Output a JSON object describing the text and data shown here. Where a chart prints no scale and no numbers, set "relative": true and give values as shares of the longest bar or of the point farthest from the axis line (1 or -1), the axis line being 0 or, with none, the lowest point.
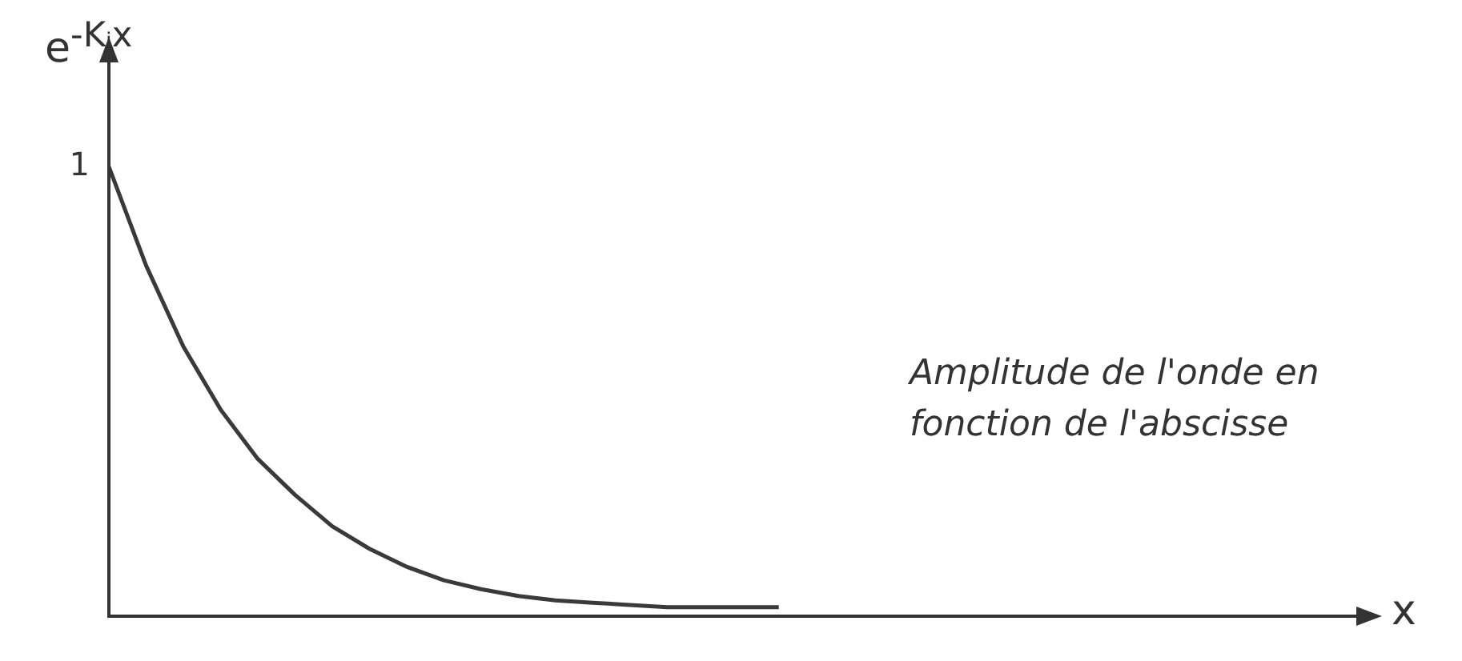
{
  "chart_data": {
    "type": "line",
    "relative": true,
    "ylabel": "e$^{-Kᵢx}$",
    "xlabel": "x",
    "categories": [
      null,
      null,
      null,
      null,
      null,
      null,
      null,
      null,
      null,
      null,
      null,
      null,
      null,
      null,
      null,
      null,
      null,
      null,
      null,
      null,
      null,
      null,
      null,
      null,
      null,
      null,
      null,
      null,
      null,
      null,
      null,
      null,
      null,
      null
    ],
    "series": [
      {
        "color": "#3a3a3a",
        "values": [
          1,
          0.78,
          0.6,
          0.46,
          0.35,
          0.27,
          0.2,
          0.15,
          0.11,
          0.08,
          0.06,
          0.045,
          0.035,
          0.03,
          0.025,
          0.02,
          0.02,
          0.02,
          0.02,
          null,
          null,
          null,
          null,
          null,
          null,
          null,
          null,
          null,
          null,
          null,
          null,
          null,
          null,
          null
        ]
      }
    ],
    "annotations": [
      "1",
      "Amplitude de l'onde en fonction de l'abscisse"
    ],
    "legend": false,
    "grid": false,
    "marker": "none",
    "line_style": "solid"
  }
}
